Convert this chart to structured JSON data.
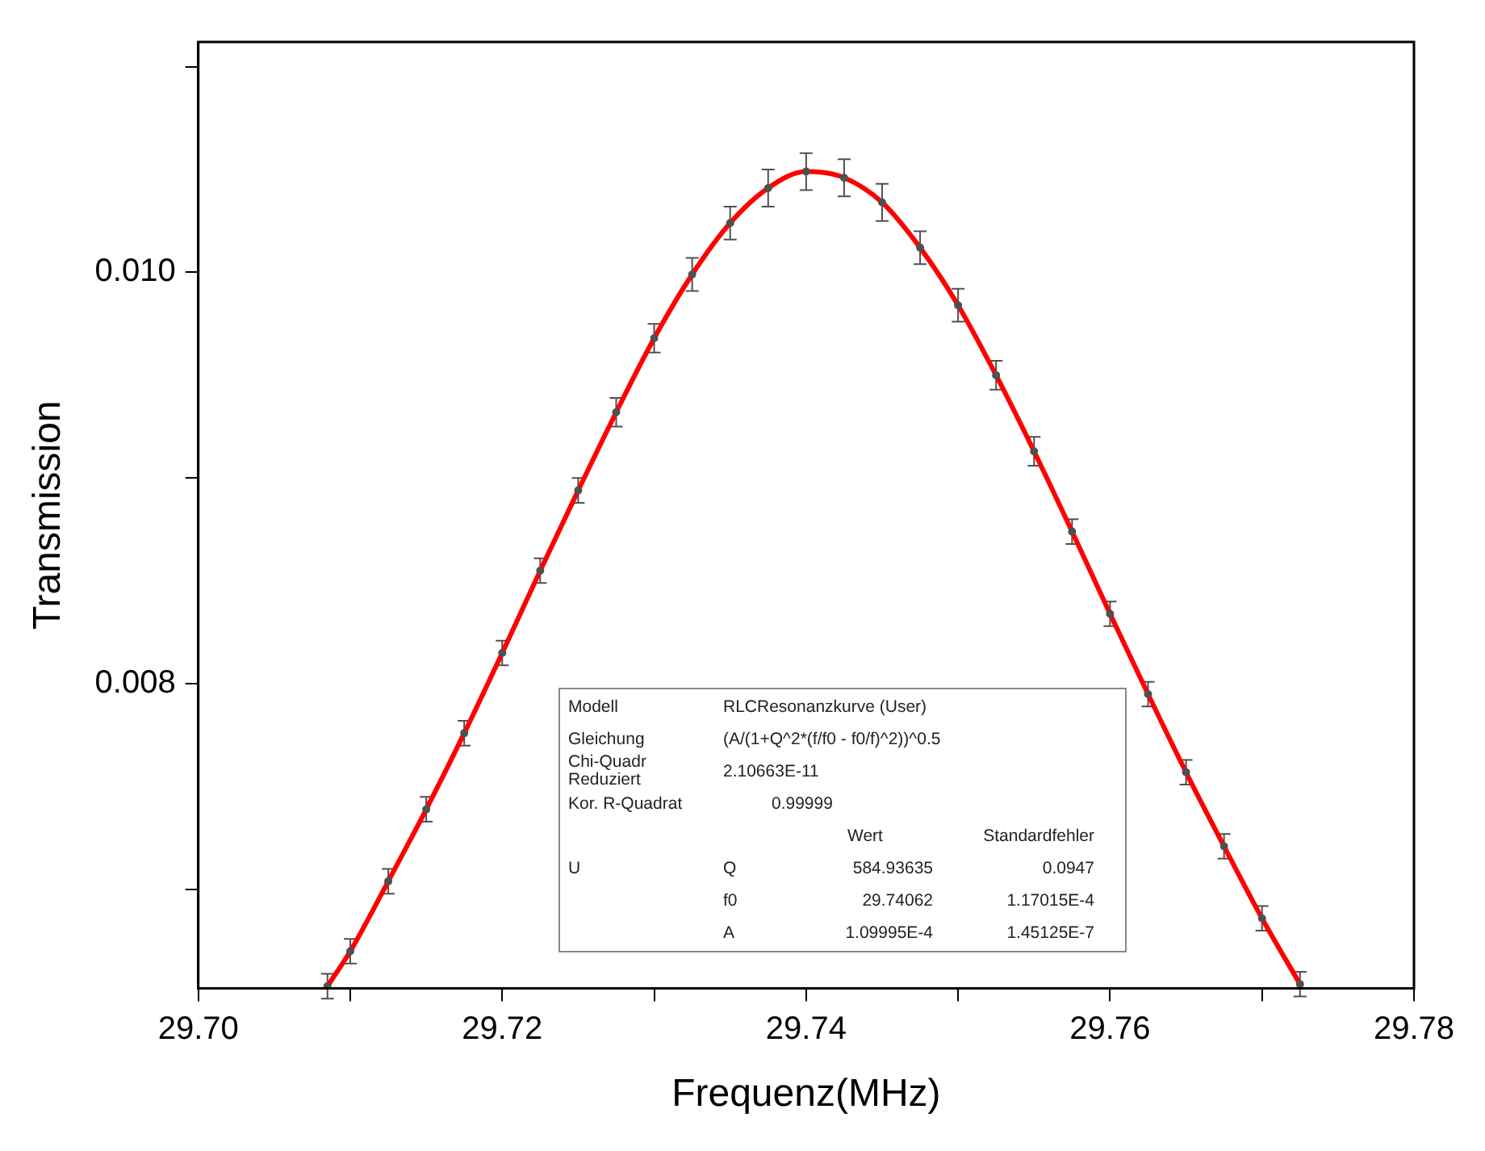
{
  "chart_data": {
    "type": "line",
    "xlabel": "Frequenz(MHz)",
    "ylabel": "Transmission",
    "xlim": [
      29.7,
      29.78
    ],
    "ylim": [
      0.00652,
      0.01112
    ],
    "xticks": [
      {
        "value": 29.7,
        "label": "29.70"
      },
      {
        "value": 29.71,
        "label": null
      },
      29.72,
      {
        "value": 29.73,
        "label": null
      },
      29.74,
      {
        "value": 29.75,
        "label": null
      },
      29.76,
      {
        "value": 29.77,
        "label": null
      },
      29.78
    ],
    "yticks": [
      {
        "value": 0.007,
        "label": null
      },
      {
        "value": 0.008,
        "label": "0.008"
      },
      {
        "value": 0.009,
        "label": null
      },
      {
        "value": 0.01,
        "label": "0.010"
      },
      {
        "value": 0.011,
        "label": null
      }
    ],
    "grid": false,
    "legend": false,
    "x": [
      29.7085,
      29.71,
      29.7125,
      29.715,
      29.7175,
      29.72,
      29.7225,
      29.725,
      29.7275,
      29.73,
      29.7325,
      29.735,
      29.7375,
      29.74,
      29.7425,
      29.745,
      29.7475,
      29.75,
      29.7525,
      29.755,
      29.7575,
      29.76,
      29.7625,
      29.765,
      29.7675,
      29.77,
      29.7725
    ],
    "series": [
      {
        "type": "scatter",
        "color": "#505050",
        "marker": "circle",
        "values": [
          0.00653,
          0.0067,
          0.00704,
          0.00739,
          0.00776,
          0.00815,
          0.00855,
          0.00894,
          0.00932,
          0.00968,
          0.00999,
          0.01024,
          0.01041,
          0.01049,
          0.01046,
          0.01034,
          0.01012,
          0.00984,
          0.0095,
          0.00913,
          0.00874,
          0.00834,
          0.00795,
          0.00757,
          0.00721,
          0.00686,
          0.00654
        ],
        "errors": [
          6e-05,
          6e-05,
          6e-05,
          6e-05,
          6e-05,
          6e-05,
          6e-05,
          6e-05,
          7e-05,
          7e-05,
          8e-05,
          8e-05,
          9e-05,
          9e-05,
          9e-05,
          9e-05,
          8e-05,
          8e-05,
          7e-05,
          7e-05,
          6e-05,
          6e-05,
          6e-05,
          6e-05,
          6e-05,
          6e-05,
          6e-05
        ]
      },
      {
        "type": "line",
        "color": "#ff0000",
        "marker": "none",
        "line_style": "solid",
        "values": [
          0.00653,
          0.0067,
          0.00704,
          0.00739,
          0.00776,
          0.00815,
          0.00855,
          0.00894,
          0.00932,
          0.00968,
          0.00999,
          0.01024,
          0.01041,
          0.01049,
          0.01046,
          0.01034,
          0.01012,
          0.00984,
          0.0095,
          0.00913,
          0.00874,
          0.00834,
          0.00795,
          0.00757,
          0.00721,
          0.00686,
          0.00654
        ]
      }
    ],
    "annotations": [
      "Modell",
      "RLCResonanzkurve (User)",
      "Gleichung",
      "(A/(1+Q^2*(f/f0 - f0/f)^2))^0.5",
      "Chi-Quadr Reduziert",
      "2.10663E-11",
      "Kor. R-Quadrat",
      "0.99999",
      "Wert",
      "Standardfehler",
      "U",
      "Q",
      "584.93635",
      "0.0947",
      "f0",
      "29.74062",
      "1.17015E-4",
      "A",
      "1.09995E-4",
      "1.45125E-7"
    ]
  }
}
